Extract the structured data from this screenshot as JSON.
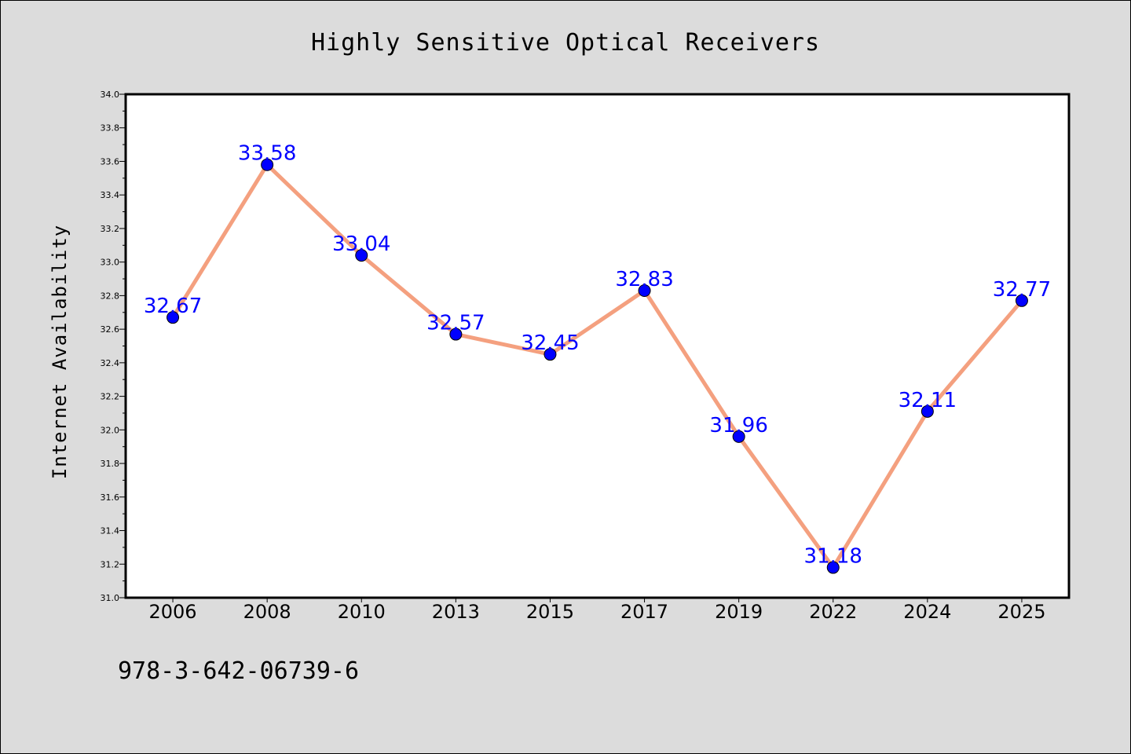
{
  "chart_data": {
    "type": "line",
    "title": "Highly Sensitive Optical Receivers",
    "ylabel": "Internet Availability",
    "xlabel": "",
    "categories": [
      "2006",
      "2008",
      "2010",
      "2013",
      "2015",
      "2017",
      "2019",
      "2022",
      "2024",
      "2025"
    ],
    "series": [
      {
        "values": [
          32.67,
          33.58,
          33.04,
          32.57,
          32.45,
          32.83,
          31.96,
          31.18,
          32.11,
          32.77
        ],
        "labels": [
          "32.67",
          "33.58",
          "33.04",
          "32.57",
          "32.45",
          "32.83",
          "31.96",
          "31.18",
          "32.11",
          "32.77"
        ]
      }
    ],
    "ylim": [
      31.0,
      34.0
    ],
    "yticks": [
      "31.0",
      "31.2",
      "31.4",
      "31.6",
      "31.8",
      "32.0",
      "32.2",
      "32.4",
      "32.6",
      "32.8",
      "33.0",
      "33.2",
      "33.4",
      "33.6",
      "33.8",
      "34.0"
    ],
    "grid": false,
    "colors": {
      "line": "#f4a07f",
      "marker": "#0000ff",
      "data_label": "#0000ff"
    }
  },
  "footer": {
    "isbn": "978-3-642-06739-6"
  }
}
